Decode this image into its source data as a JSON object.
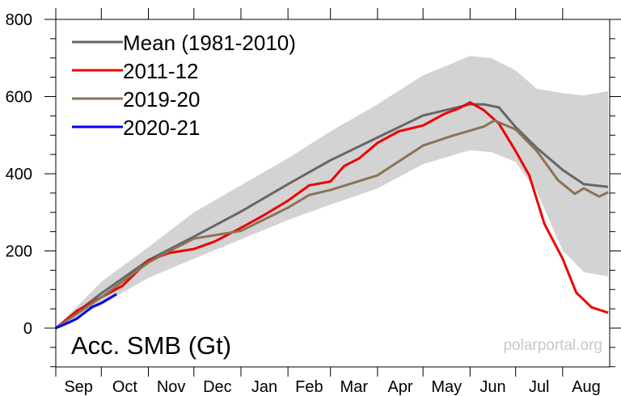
{
  "chart_data": {
    "type": "line",
    "ylabel": "Acc. SMB (Gt)",
    "watermark": "polarportal.org",
    "ylim": [
      -100,
      800
    ],
    "yticks": [
      0,
      200,
      400,
      600,
      800
    ],
    "x_categories": [
      "Sep",
      "Oct",
      "Nov",
      "Dec",
      "Jan",
      "Feb",
      "Mar",
      "Apr",
      "May",
      "Jun",
      "Jul",
      "Aug"
    ],
    "grid": false,
    "legend_position": "top-left",
    "band": {
      "color": "#d3d3d3",
      "upper": [
        [
          "09-01",
          0
        ],
        [
          "10-01",
          120
        ],
        [
          "11-01",
          210
        ],
        [
          "12-01",
          300
        ],
        [
          "01-01",
          370
        ],
        [
          "02-01",
          440
        ],
        [
          "03-01",
          510
        ],
        [
          "04-01",
          580
        ],
        [
          "05-01",
          655
        ],
        [
          "06-01",
          705
        ],
        [
          "06-15",
          700
        ],
        [
          "07-01",
          668
        ],
        [
          "07-15",
          620
        ],
        [
          "08-01",
          609
        ],
        [
          "08-15",
          603
        ],
        [
          "08-31",
          614
        ]
      ],
      "lower": [
        [
          "09-01",
          0
        ],
        [
          "10-01",
          60
        ],
        [
          "11-01",
          130
        ],
        [
          "12-01",
          180
        ],
        [
          "01-01",
          230
        ],
        [
          "02-01",
          280
        ],
        [
          "03-01",
          320
        ],
        [
          "04-01",
          362
        ],
        [
          "05-01",
          425
        ],
        [
          "06-01",
          461
        ],
        [
          "06-15",
          456
        ],
        [
          "07-01",
          431
        ],
        [
          "07-15",
          354
        ],
        [
          "08-01",
          201
        ],
        [
          "08-15",
          145
        ],
        [
          "08-31",
          134
        ]
      ]
    },
    "series": [
      {
        "name": "Mean (1981-2010)",
        "color": "#666666",
        "points": [
          [
            "09-01",
            0
          ],
          [
            "10-01",
            90
          ],
          [
            "11-01",
            176
          ],
          [
            "12-01",
            237
          ],
          [
            "01-01",
            302
          ],
          [
            "02-01",
            373
          ],
          [
            "03-01",
            435
          ],
          [
            "04-01",
            494
          ],
          [
            "05-01",
            551
          ],
          [
            "06-01",
            580
          ],
          [
            "06-10",
            580
          ],
          [
            "06-20",
            572
          ],
          [
            "07-01",
            521
          ],
          [
            "07-15",
            467
          ],
          [
            "08-01",
            410
          ],
          [
            "08-15",
            373
          ],
          [
            "08-31",
            366
          ]
        ]
      },
      {
        "name": "2011-12",
        "color": "#ee0000",
        "points": [
          [
            "09-01",
            0
          ],
          [
            "09-15",
            45
          ],
          [
            "10-01",
            80
          ],
          [
            "10-15",
            110
          ],
          [
            "11-01",
            175
          ],
          [
            "11-15",
            195
          ],
          [
            "12-01",
            205
          ],
          [
            "12-15",
            225
          ],
          [
            "01-01",
            260
          ],
          [
            "01-15",
            290
          ],
          [
            "02-01",
            330
          ],
          [
            "02-15",
            370
          ],
          [
            "03-01",
            380
          ],
          [
            "03-10",
            420
          ],
          [
            "03-20",
            440
          ],
          [
            "04-01",
            480
          ],
          [
            "04-15",
            510
          ],
          [
            "05-01",
            525
          ],
          [
            "05-15",
            555
          ],
          [
            "05-25",
            570
          ],
          [
            "06-01",
            585
          ],
          [
            "06-10",
            565
          ],
          [
            "06-20",
            530
          ],
          [
            "07-01",
            459
          ],
          [
            "07-10",
            396
          ],
          [
            "07-20",
            270
          ],
          [
            "08-01",
            180
          ],
          [
            "08-10",
            92
          ],
          [
            "08-20",
            54
          ],
          [
            "08-31",
            40
          ]
        ]
      },
      {
        "name": "2019-20",
        "color": "#8b7355",
        "points": [
          [
            "09-01",
            0
          ],
          [
            "10-01",
            80
          ],
          [
            "11-01",
            170
          ],
          [
            "11-15",
            200
          ],
          [
            "12-01",
            232
          ],
          [
            "01-01",
            252
          ],
          [
            "02-01",
            312
          ],
          [
            "02-15",
            345
          ],
          [
            "03-01",
            358
          ],
          [
            "04-01",
            396
          ],
          [
            "05-01",
            473
          ],
          [
            "05-20",
            498
          ],
          [
            "06-10",
            522
          ],
          [
            "06-17",
            538
          ],
          [
            "07-01",
            515
          ],
          [
            "07-15",
            459
          ],
          [
            "07-29",
            383
          ],
          [
            "08-09",
            348
          ],
          [
            "08-15",
            362
          ],
          [
            "08-25",
            341
          ],
          [
            "08-31",
            352
          ]
        ]
      },
      {
        "name": "2020-21",
        "color": "#0000ee",
        "points": [
          [
            "09-01",
            0
          ],
          [
            "09-10",
            15
          ],
          [
            "09-15",
            25
          ],
          [
            "09-20",
            40
          ],
          [
            "09-25",
            55
          ],
          [
            "10-01",
            65
          ],
          [
            "10-11",
            88
          ]
        ]
      }
    ]
  }
}
